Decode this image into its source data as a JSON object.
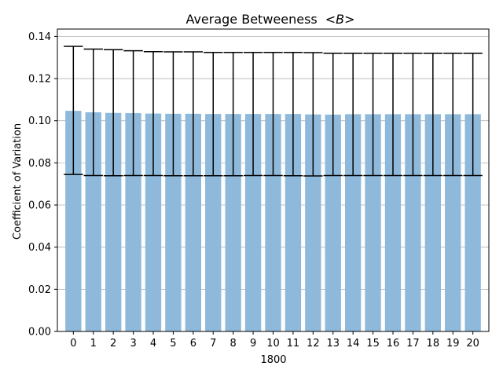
{
  "chart_data": {
    "type": "bar",
    "title": "Average Betweeness",
    "title_math": "<B>",
    "xlabel": "1800",
    "ylabel": "Coefficient of Variation",
    "categories": [
      "0",
      "1",
      "2",
      "3",
      "4",
      "5",
      "6",
      "7",
      "8",
      "9",
      "10",
      "11",
      "12",
      "13",
      "14",
      "15",
      "16",
      "17",
      "18",
      "19",
      "20"
    ],
    "values": [
      0.1047,
      0.104,
      0.1037,
      0.1036,
      0.1034,
      0.1033,
      0.1033,
      0.1032,
      0.1032,
      0.1032,
      0.1032,
      0.1032,
      0.103,
      0.1029,
      0.1031,
      0.1031,
      0.1031,
      0.1031,
      0.1031,
      0.1031,
      0.1031
    ],
    "error_upper": [
      0.1353,
      0.134,
      0.1337,
      0.1332,
      0.1328,
      0.1327,
      0.1327,
      0.1324,
      0.1324,
      0.1324,
      0.1324,
      0.1324,
      0.1323,
      0.132,
      0.132,
      0.132,
      0.132,
      0.132,
      0.132,
      0.132,
      0.132
    ],
    "error_lower": [
      0.0745,
      0.074,
      0.0739,
      0.074,
      0.074,
      0.0739,
      0.0739,
      0.0739,
      0.0739,
      0.074,
      0.074,
      0.0739,
      0.0738,
      0.074,
      0.074,
      0.074,
      0.074,
      0.074,
      0.074,
      0.074,
      0.074
    ],
    "yticks": [
      "0.00",
      "0.02",
      "0.04",
      "0.06",
      "0.08",
      "0.10",
      "0.12",
      "0.14"
    ],
    "ylim": [
      0,
      0.1435
    ],
    "grid": "y",
    "colors": {
      "bar": "#8fb9da",
      "error": "#000000",
      "grid": "#b0b0b0",
      "axis": "#000000"
    }
  }
}
